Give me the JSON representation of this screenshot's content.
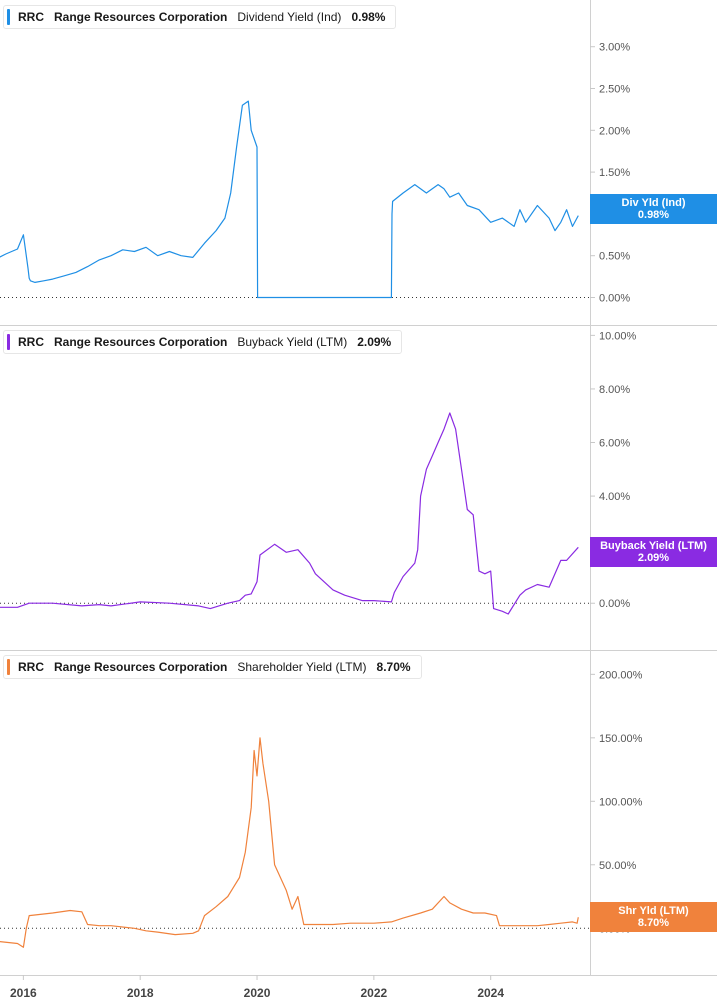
{
  "panels": [
    {
      "symbol": "RRC",
      "company": "Range Resources Corporation",
      "metric": "Dividend Yield (Ind)",
      "value": "0.98%",
      "tag_label": "Div Yld (Ind)",
      "tag_value": "0.98%",
      "color": "#1f8fe5",
      "tag_color": "#1f8fe5"
    },
    {
      "symbol": "RRC",
      "company": "Range Resources Corporation",
      "metric": "Buyback Yield (LTM)",
      "value": "2.09%",
      "tag_label": "Buyback Yield (LTM)",
      "tag_value": "2.09%",
      "color": "#8a2be2",
      "tag_color": "#8a2be2"
    },
    {
      "symbol": "RRC",
      "company": "Range Resources Corporation",
      "metric": "Shareholder Yield (LTM)",
      "value": "8.70%",
      "tag_label": "Shr Yld (LTM)",
      "tag_value": "8.70%",
      "color": "#f0823c",
      "tag_color": "#f0823c"
    }
  ],
  "chart_data": [
    {
      "type": "line",
      "series": [
        {
          "name": "Dividend Yield (Ind)",
          "x": [
            2015.5,
            2015.7,
            2015.9,
            2016.0,
            2016.08,
            2016.1,
            2016.12,
            2016.2,
            2016.35,
            2016.5,
            2016.7,
            2016.9,
            2017.1,
            2017.3,
            2017.5,
            2017.7,
            2017.9,
            2018.1,
            2018.3,
            2018.5,
            2018.7,
            2018.9,
            2019.1,
            2019.3,
            2019.45,
            2019.55,
            2019.65,
            2019.75,
            2019.85,
            2019.9,
            2020.0,
            2020.01,
            2020.1,
            2020.5,
            2021.0,
            2021.5,
            2022.0,
            2022.3,
            2022.31,
            2022.32,
            2022.5,
            2022.7,
            2022.9,
            2023.0,
            2023.1,
            2023.2,
            2023.3,
            2023.45,
            2023.6,
            2023.8,
            2024.0,
            2024.2,
            2024.4,
            2024.5,
            2024.6,
            2024.8,
            2025.0,
            2025.1,
            2025.2,
            2025.3,
            2025.4,
            2025.5
          ],
          "y": [
            0.45,
            0.52,
            0.58,
            0.75,
            0.35,
            0.23,
            0.2,
            0.18,
            0.2,
            0.22,
            0.26,
            0.3,
            0.37,
            0.45,
            0.5,
            0.57,
            0.55,
            0.6,
            0.5,
            0.55,
            0.5,
            0.48,
            0.65,
            0.8,
            0.95,
            1.25,
            1.8,
            2.3,
            2.35,
            2.0,
            1.8,
            0.0,
            0.0,
            0.0,
            0.0,
            0.0,
            0.0,
            0.0,
            1.0,
            1.15,
            1.25,
            1.35,
            1.25,
            1.3,
            1.35,
            1.3,
            1.2,
            1.25,
            1.1,
            1.05,
            0.9,
            0.95,
            0.85,
            1.05,
            0.9,
            1.1,
            0.95,
            0.8,
            0.9,
            1.05,
            0.85,
            0.98
          ]
        }
      ],
      "ylim": [
        -0.03,
        3.2
      ],
      "y_ticks": [
        "3.00%",
        "2.50%",
        "2.00%",
        "1.50%",
        "1.00%",
        "0.50%",
        "0.00%"
      ],
      "y_tick_values": [
        3,
        2.5,
        2,
        1.5,
        1,
        0.5,
        0
      ],
      "zero_line": true
    },
    {
      "type": "line",
      "series": [
        {
          "name": "Buyback Yield (LTM)",
          "x": [
            2015.5,
            2015.9,
            2016.1,
            2016.5,
            2017.0,
            2017.3,
            2017.5,
            2018.0,
            2018.5,
            2019.0,
            2019.2,
            2019.5,
            2019.7,
            2019.8,
            2019.9,
            2020.0,
            2020.05,
            2020.3,
            2020.5,
            2020.7,
            2020.9,
            2021.0,
            2021.3,
            2021.5,
            2021.8,
            2022.0,
            2022.3,
            2022.35,
            2022.5,
            2022.7,
            2022.75,
            2022.8,
            2022.9,
            2023.0,
            2023.1,
            2023.2,
            2023.3,
            2023.4,
            2023.5,
            2023.6,
            2023.7,
            2023.8,
            2023.9,
            2024.0,
            2024.05,
            2024.2,
            2024.3,
            2024.5,
            2024.6,
            2024.8,
            2025.0,
            2025.2,
            2025.3,
            2025.5
          ],
          "y": [
            -0.15,
            -0.15,
            0.0,
            0.0,
            -0.1,
            -0.05,
            -0.1,
            0.05,
            0.0,
            -0.1,
            -0.2,
            0.0,
            0.1,
            0.3,
            0.35,
            0.8,
            1.8,
            2.2,
            1.9,
            2.0,
            1.5,
            1.1,
            0.5,
            0.3,
            0.1,
            0.1,
            0.05,
            0.4,
            1.0,
            1.5,
            2.0,
            4.0,
            5.0,
            5.5,
            6.0,
            6.5,
            7.1,
            6.5,
            5.0,
            3.5,
            3.3,
            1.2,
            1.1,
            1.2,
            -0.2,
            -0.3,
            -0.4,
            0.3,
            0.5,
            0.7,
            0.6,
            1.6,
            1.6,
            2.09
          ]
        }
      ],
      "ylim": [
        -0.7,
        10.2
      ],
      "y_ticks": [
        "10.00%",
        "8.00%",
        "6.00%",
        "4.00%",
        "2.00%",
        "0.00%"
      ],
      "y_tick_values": [
        10,
        8,
        6,
        4,
        2,
        0
      ],
      "zero_line": true
    },
    {
      "type": "line",
      "series": [
        {
          "name": "Shareholder Yield (LTM)",
          "x": [
            2015.5,
            2015.9,
            2016.0,
            2016.05,
            2016.1,
            2016.5,
            2016.8,
            2017.0,
            2017.1,
            2017.3,
            2017.5,
            2017.9,
            2018.1,
            2018.3,
            2018.6,
            2018.9,
            2019.0,
            2019.1,
            2019.3,
            2019.5,
            2019.7,
            2019.8,
            2019.9,
            2019.95,
            2020.0,
            2020.05,
            2020.1,
            2020.2,
            2020.3,
            2020.5,
            2020.6,
            2020.7,
            2020.8,
            2021.0,
            2021.3,
            2021.6,
            2022.0,
            2022.3,
            2022.5,
            2022.8,
            2023.0,
            2023.2,
            2023.3,
            2023.5,
            2023.7,
            2023.9,
            2024.1,
            2024.15,
            2024.5,
            2024.8,
            2025.0,
            2025.2,
            2025.4,
            2025.48,
            2025.5
          ],
          "y": [
            -10,
            -12,
            -15,
            0,
            10,
            12,
            14,
            13,
            3,
            2,
            2,
            0,
            -2,
            -3,
            -5,
            -4,
            -2,
            10,
            17,
            25,
            40,
            60,
            95,
            140,
            120,
            150,
            130,
            100,
            50,
            30,
            15,
            25,
            3,
            3,
            3,
            4,
            4,
            5,
            8,
            12,
            15,
            25,
            20,
            15,
            12,
            12,
            10,
            2,
            2,
            2,
            3,
            4,
            5,
            4,
            8.7
          ]
        }
      ],
      "ylim": [
        -25,
        205
      ],
      "y_ticks": [
        "200.00%",
        "150.00%",
        "100.00%",
        "50.00%",
        "0.00%"
      ],
      "y_tick_values": [
        200,
        150,
        100,
        50,
        0
      ],
      "zero_line": true
    }
  ],
  "x_axis": {
    "ticks": [
      "2016",
      "2018",
      "2020",
      "2022",
      "2024"
    ],
    "tick_values": [
      2016,
      2018,
      2020,
      2022,
      2024
    ],
    "xlim": [
      2015.6,
      2025.7
    ]
  }
}
